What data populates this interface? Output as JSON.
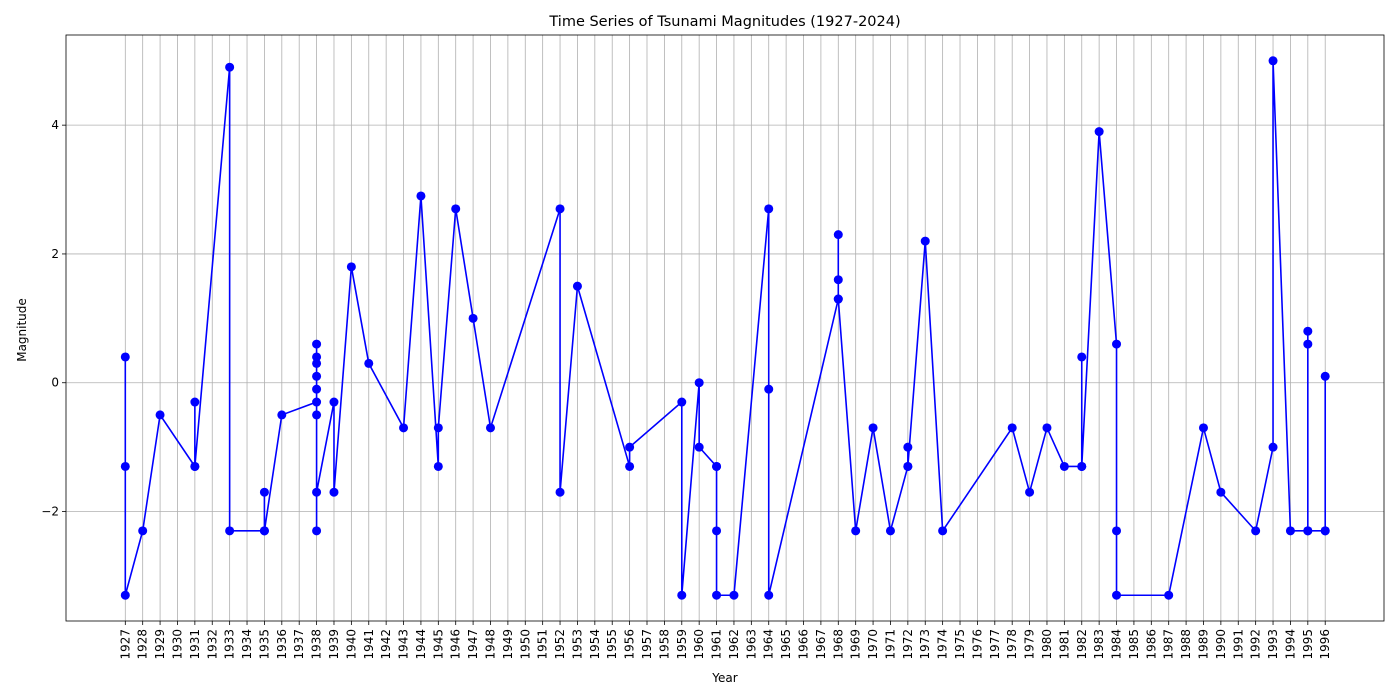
{
  "chart_data": {
    "type": "line",
    "title": "Time Series of Tsunami Magnitudes (1927-2024)",
    "xlabel": "Year",
    "ylabel": "Magnitude",
    "ylim": [
      -3.7,
      5.4
    ],
    "grid": true,
    "line_color": "#0000ff",
    "marker": "circle",
    "x_categories": [
      "1927",
      "1928",
      "1929",
      "1930",
      "1931",
      "1932",
      "1933",
      "1934",
      "1935",
      "1936",
      "1937",
      "1938",
      "1939",
      "1940",
      "1941",
      "1942",
      "1943",
      "1944",
      "1945",
      "1946",
      "1947",
      "1948",
      "1949",
      "1950",
      "1951",
      "1952",
      "1953",
      "1954",
      "1955",
      "1956",
      "1957",
      "1958",
      "1959",
      "1960",
      "1961",
      "1962",
      "1963",
      "1964",
      "1965",
      "1966",
      "1967",
      "1968",
      "1969",
      "1970",
      "1971",
      "1972",
      "1973",
      "1974",
      "1975",
      "1976",
      "1977",
      "1978",
      "1979",
      "1980",
      "1981",
      "1982",
      "1983",
      "1984",
      "1985",
      "1986",
      "1987",
      "1988",
      "1989",
      "1990",
      "1991",
      "1992",
      "1993",
      "1994",
      "1995",
      "1996"
    ],
    "y_ticks": [
      -2,
      0,
      2,
      4
    ],
    "y_tick_labels": [
      "−2",
      "0",
      "2",
      "4"
    ],
    "series": [
      {
        "points": [
          {
            "x": "1927",
            "y": 0.4
          },
          {
            "x": "1927",
            "y": -1.3
          },
          {
            "x": "1927",
            "y": -3.3
          },
          {
            "x": "1928",
            "y": -2.3
          },
          {
            "x": "1929",
            "y": -0.5
          },
          {
            "x": "1931",
            "y": -1.3
          },
          {
            "x": "1931",
            "y": -0.3
          },
          {
            "x": "1931",
            "y": -1.3
          },
          {
            "x": "1933",
            "y": 4.9
          },
          {
            "x": "1933",
            "y": -2.3
          },
          {
            "x": "1935",
            "y": -2.3
          },
          {
            "x": "1935",
            "y": -1.7
          },
          {
            "x": "1935",
            "y": -2.3
          },
          {
            "x": "1936",
            "y": -0.5
          },
          {
            "x": "1938",
            "y": -0.3
          },
          {
            "x": "1938",
            "y": 0.6
          },
          {
            "x": "1938",
            "y": 0.4
          },
          {
            "x": "1938",
            "y": 0.3
          },
          {
            "x": "1938",
            "y": 0.1
          },
          {
            "x": "1938",
            "y": -0.1
          },
          {
            "x": "1938",
            "y": -0.5
          },
          {
            "x": "1938",
            "y": -2.3
          },
          {
            "x": "1938",
            "y": -1.7
          },
          {
            "x": "1939",
            "y": -0.3
          },
          {
            "x": "1939",
            "y": -1.7
          },
          {
            "x": "1940",
            "y": 1.8
          },
          {
            "x": "1941",
            "y": 0.3
          },
          {
            "x": "1943",
            "y": -0.7
          },
          {
            "x": "1944",
            "y": 2.9
          },
          {
            "x": "1945",
            "y": -1.3
          },
          {
            "x": "1945",
            "y": -0.7
          },
          {
            "x": "1946",
            "y": 2.7
          },
          {
            "x": "1947",
            "y": 1.0
          },
          {
            "x": "1948",
            "y": -0.7
          },
          {
            "x": "1952",
            "y": 2.7
          },
          {
            "x": "1952",
            "y": -1.7
          },
          {
            "x": "1953",
            "y": 1.5
          },
          {
            "x": "1956",
            "y": -1.3
          },
          {
            "x": "1956",
            "y": -1.0
          },
          {
            "x": "1959",
            "y": -0.3
          },
          {
            "x": "1959",
            "y": -3.3
          },
          {
            "x": "1960",
            "y": 0.0
          },
          {
            "x": "1960",
            "y": -1.0
          },
          {
            "x": "1961",
            "y": -1.3
          },
          {
            "x": "1961",
            "y": -1.3
          },
          {
            "x": "1961",
            "y": -2.3
          },
          {
            "x": "1961",
            "y": -3.3
          },
          {
            "x": "1962",
            "y": -3.3
          },
          {
            "x": "1964",
            "y": 2.7
          },
          {
            "x": "1964",
            "y": -0.1
          },
          {
            "x": "1964",
            "y": -3.3
          },
          {
            "x": "1968",
            "y": 1.3
          },
          {
            "x": "1968",
            "y": 2.3
          },
          {
            "x": "1968",
            "y": 1.6
          },
          {
            "x": "1968",
            "y": 1.3
          },
          {
            "x": "1969",
            "y": -2.3
          },
          {
            "x": "1970",
            "y": -0.7
          },
          {
            "x": "1971",
            "y": -2.3
          },
          {
            "x": "1972",
            "y": -1.3
          },
          {
            "x": "1972",
            "y": -1.0
          },
          {
            "x": "1972",
            "y": -1.3
          },
          {
            "x": "1973",
            "y": 2.2
          },
          {
            "x": "1974",
            "y": -2.3
          },
          {
            "x": "1978",
            "y": -0.7
          },
          {
            "x": "1979",
            "y": -1.7
          },
          {
            "x": "1980",
            "y": -0.7
          },
          {
            "x": "1981",
            "y": -1.3
          },
          {
            "x": "1982",
            "y": -1.3
          },
          {
            "x": "1982",
            "y": 0.4
          },
          {
            "x": "1982",
            "y": -1.3
          },
          {
            "x": "1983",
            "y": 3.9
          },
          {
            "x": "1984",
            "y": 0.6
          },
          {
            "x": "1984",
            "y": -2.3
          },
          {
            "x": "1984",
            "y": -3.3
          },
          {
            "x": "1987",
            "y": -3.3
          },
          {
            "x": "1989",
            "y": -0.7
          },
          {
            "x": "1990",
            "y": -1.7
          },
          {
            "x": "1992",
            "y": -2.3
          },
          {
            "x": "1993",
            "y": -1.0
          },
          {
            "x": "1993",
            "y": 5.0
          },
          {
            "x": "1994",
            "y": -2.3
          },
          {
            "x": "1995",
            "y": -2.3
          },
          {
            "x": "1995",
            "y": 0.8
          },
          {
            "x": "1995",
            "y": 0.6
          },
          {
            "x": "1995",
            "y": -2.3
          },
          {
            "x": "1996",
            "y": -2.3
          },
          {
            "x": "1996",
            "y": 0.1
          },
          {
            "x": "1996",
            "y": -2.3
          }
        ]
      }
    ]
  }
}
